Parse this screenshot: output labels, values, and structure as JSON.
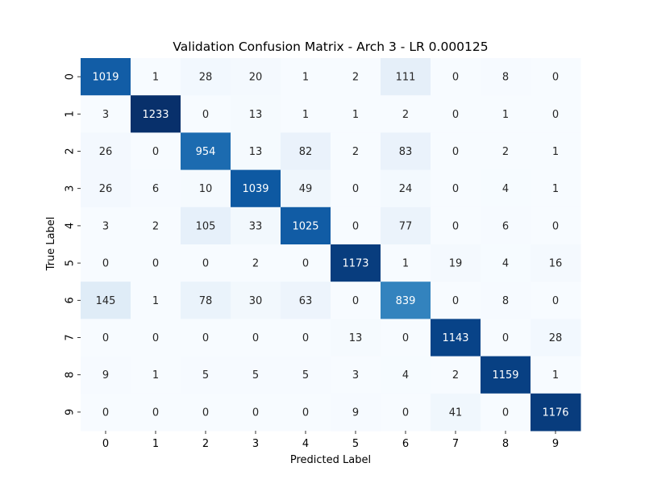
{
  "chart_data": {
    "type": "heatmap",
    "title": "Validation Confusion Matrix - Arch 3 - LR 0.000125",
    "xlabel": "Predicted Label",
    "ylabel": "True Label",
    "x_ticks": [
      "0",
      "1",
      "2",
      "3",
      "4",
      "5",
      "6",
      "7",
      "8",
      "9"
    ],
    "y_ticks": [
      "0",
      "1",
      "2",
      "3",
      "4",
      "5",
      "6",
      "7",
      "8",
      "9"
    ],
    "colormap": "Blues",
    "value_range": [
      0,
      1233
    ],
    "matrix": [
      [
        1019,
        1,
        28,
        20,
        1,
        2,
        111,
        0,
        8,
        0
      ],
      [
        3,
        1233,
        0,
        13,
        1,
        1,
        2,
        0,
        1,
        0
      ],
      [
        26,
        0,
        954,
        13,
        82,
        2,
        83,
        0,
        2,
        1
      ],
      [
        26,
        6,
        10,
        1039,
        49,
        0,
        24,
        0,
        4,
        1
      ],
      [
        3,
        2,
        105,
        33,
        1025,
        0,
        77,
        0,
        6,
        0
      ],
      [
        0,
        0,
        0,
        2,
        0,
        1173,
        1,
        19,
        4,
        16
      ],
      [
        145,
        1,
        78,
        30,
        63,
        0,
        839,
        0,
        8,
        0
      ],
      [
        0,
        0,
        0,
        0,
        0,
        13,
        0,
        1143,
        0,
        28
      ],
      [
        9,
        1,
        5,
        5,
        5,
        3,
        4,
        2,
        1159,
        1
      ],
      [
        0,
        0,
        0,
        0,
        0,
        9,
        0,
        41,
        0,
        1176
      ]
    ]
  }
}
